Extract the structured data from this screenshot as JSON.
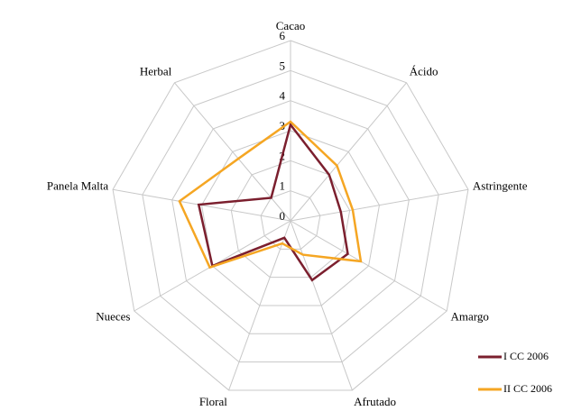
{
  "chart_data": {
    "type": "radar",
    "categories": [
      "Cacao",
      "Ácido",
      "Astringente",
      "Amargo",
      "Afrutado",
      "Floral",
      "Nueces",
      "Panela Malta",
      "Herbal"
    ],
    "series": [
      {
        "name": "I CC 2006",
        "color": "#7b1f2e",
        "values": [
          3.2,
          2.0,
          1.7,
          2.2,
          2.1,
          0.6,
          3.0,
          3.1,
          1.0
        ]
      },
      {
        "name": "II CC 2006",
        "color": "#f5a623",
        "values": [
          3.3,
          2.4,
          2.1,
          2.7,
          1.2,
          0.8,
          3.1,
          3.75,
          2.7
        ]
      }
    ],
    "ylim": [
      0,
      6
    ],
    "yticks": [
      0,
      1,
      2,
      3,
      4,
      5,
      6
    ],
    "grid": true,
    "legend": "bottom-right"
  }
}
